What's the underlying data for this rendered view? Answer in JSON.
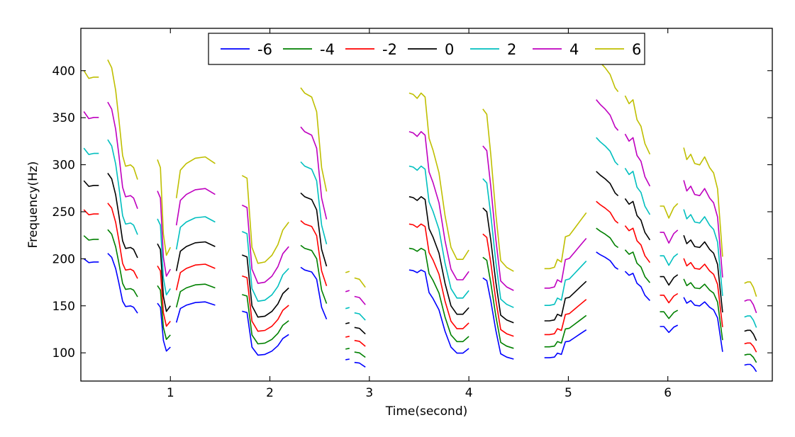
{
  "chart_data": {
    "type": "line",
    "title": "",
    "xlabel": "Time(second)",
    "ylabel": "Frequency(Hz)",
    "xlim": [
      0.1,
      7.05
    ],
    "ylim": [
      70,
      445
    ],
    "xticks": [
      1,
      2,
      3,
      4,
      5,
      6
    ],
    "yticks": [
      100,
      150,
      200,
      250,
      300,
      350,
      400
    ],
    "grid": false,
    "legend_position": "top-center",
    "segments": [
      {
        "x": [
          0.13,
          0.18,
          0.23,
          0.28
        ],
        "base": [
          283,
          277,
          278,
          278
        ]
      },
      {
        "x": [
          0.37,
          0.41,
          0.45,
          0.48,
          0.52,
          0.55,
          0.6,
          0.63,
          0.67
        ],
        "base": [
          291,
          285,
          268,
          248,
          219,
          211,
          212,
          210,
          201
        ]
      },
      {
        "x": [
          0.87,
          0.9,
          0.93,
          0.96,
          1.0
        ],
        "base": [
          216,
          210,
          160,
          144,
          150
        ]
      },
      {
        "x": [
          1.06,
          1.1,
          1.16,
          1.25,
          1.35,
          1.45
        ],
        "base": [
          187,
          208,
          213,
          217,
          218,
          213
        ]
      },
      {
        "x": [
          1.72,
          1.77,
          1.82,
          1.88,
          1.95,
          2.02,
          2.08,
          2.13,
          2.19
        ],
        "base": [
          204,
          202,
          150,
          138,
          139,
          144,
          152,
          163,
          169
        ]
      },
      {
        "x": [
          2.31,
          2.35,
          2.42,
          2.47,
          2.52,
          2.57
        ],
        "base": [
          270,
          266,
          263,
          252,
          210,
          192
        ]
      },
      {
        "x": [
          2.76,
          2.8
        ],
        "base": [
          131,
          132
        ]
      },
      {
        "x": [
          2.85,
          2.9,
          2.96
        ],
        "base": [
          127,
          126,
          120
        ]
      },
      {
        "x": [
          3.4,
          3.44,
          3.48,
          3.52,
          3.56,
          3.6,
          3.64,
          3.7,
          3.76,
          3.82,
          3.88,
          3.94,
          4.0
        ],
        "base": [
          266,
          265,
          262,
          266,
          263,
          232,
          223,
          206,
          174,
          150,
          141,
          141,
          148
        ]
      },
      {
        "x": [
          4.14,
          4.18,
          4.22,
          4.27,
          4.32,
          4.38,
          4.45
        ],
        "base": [
          254,
          250,
          220,
          176,
          140,
          135,
          132
        ]
      },
      {
        "x": [
          4.76,
          4.81,
          4.86,
          4.89,
          4.93,
          4.97,
          5.01,
          5.06,
          5.12,
          5.18
        ],
        "base": [
          134,
          134,
          135,
          141,
          139,
          158,
          159,
          164,
          170,
          176
        ]
      },
      {
        "x": [
          5.28,
          5.32,
          5.37,
          5.42,
          5.47,
          5.5
        ],
        "base": [
          293,
          289,
          285,
          280,
          270,
          267
        ]
      },
      {
        "x": [
          5.57,
          5.61,
          5.65,
          5.69,
          5.73,
          5.77,
          5.82
        ],
        "base": [
          264,
          258,
          261,
          246,
          241,
          228,
          220
        ]
      },
      {
        "x": [
          5.92,
          5.96,
          6.01,
          6.06,
          6.1
        ],
        "base": [
          181,
          181,
          172,
          180,
          183
        ]
      },
      {
        "x": [
          6.16,
          6.19,
          6.23,
          6.27,
          6.32,
          6.37,
          6.42,
          6.46,
          6.5,
          6.55
        ],
        "base": [
          225,
          216,
          220,
          213,
          212,
          218,
          210,
          206,
          194,
          143
        ]
      },
      {
        "x": [
          6.77,
          6.8,
          6.83,
          6.86,
          6.89
        ],
        "base": [
          123,
          124,
          124,
          120,
          113
        ]
      }
    ],
    "series": [
      {
        "name": "-6",
        "offset": -6,
        "color": "#0000ff"
      },
      {
        "name": "-4",
        "offset": -4,
        "color": "#008000"
      },
      {
        "name": "-2",
        "offset": -2,
        "color": "#ff0000"
      },
      {
        "name": "0",
        "offset": 0,
        "color": "#000000"
      },
      {
        "name": "2",
        "offset": 2,
        "color": "#00bfbf"
      },
      {
        "name": "4",
        "offset": 4,
        "color": "#bf00bf"
      },
      {
        "name": "6",
        "offset": 6,
        "color": "#bfbf00"
      }
    ]
  }
}
